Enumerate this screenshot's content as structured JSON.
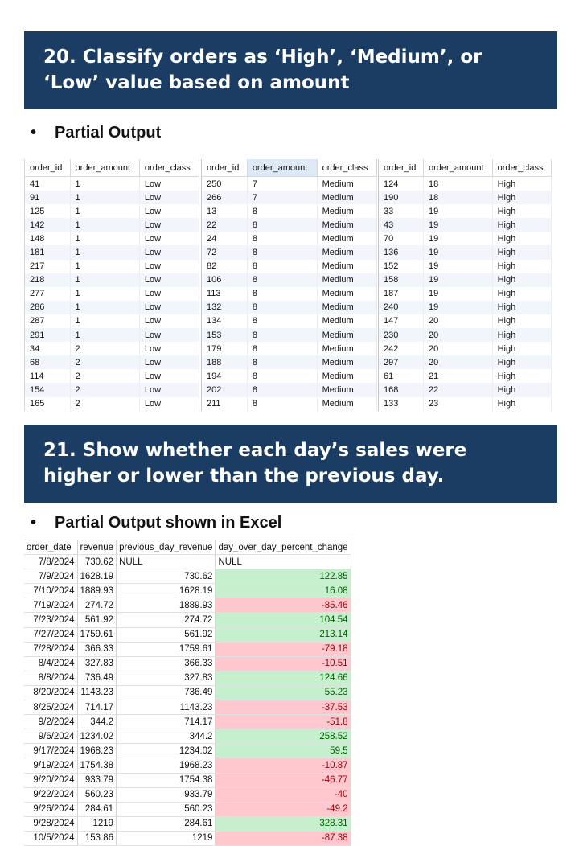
{
  "section1": {
    "title_lines": [
      "20. Classify orders as ‘High’, ‘Medium’, or",
      "‘Low’ value based on amount"
    ],
    "bullet": "•",
    "subtitle": "Partial Output",
    "grids": [
      {
        "columns": [
          "order_id",
          "order_amount",
          "order_class"
        ],
        "selected_column": -1,
        "rows": [
          [
            "41",
            "1",
            "Low"
          ],
          [
            "91",
            "1",
            "Low"
          ],
          [
            "125",
            "1",
            "Low"
          ],
          [
            "142",
            "1",
            "Low"
          ],
          [
            "148",
            "1",
            "Low"
          ],
          [
            "181",
            "1",
            "Low"
          ],
          [
            "217",
            "1",
            "Low"
          ],
          [
            "218",
            "1",
            "Low"
          ],
          [
            "277",
            "1",
            "Low"
          ],
          [
            "286",
            "1",
            "Low"
          ],
          [
            "287",
            "1",
            "Low"
          ],
          [
            "291",
            "1",
            "Low"
          ],
          [
            "34",
            "2",
            "Low"
          ],
          [
            "68",
            "2",
            "Low"
          ],
          [
            "114",
            "2",
            "Low"
          ],
          [
            "154",
            "2",
            "Low"
          ],
          [
            "165",
            "2",
            "Low"
          ]
        ]
      },
      {
        "columns": [
          "order_id",
          "order_amount",
          "order_class"
        ],
        "selected_column": 1,
        "rows": [
          [
            "250",
            "7",
            "Medium"
          ],
          [
            "266",
            "7",
            "Medium"
          ],
          [
            "13",
            "8",
            "Medium"
          ],
          [
            "22",
            "8",
            "Medium"
          ],
          [
            "24",
            "8",
            "Medium"
          ],
          [
            "72",
            "8",
            "Medium"
          ],
          [
            "82",
            "8",
            "Medium"
          ],
          [
            "106",
            "8",
            "Medium"
          ],
          [
            "113",
            "8",
            "Medium"
          ],
          [
            "132",
            "8",
            "Medium"
          ],
          [
            "134",
            "8",
            "Medium"
          ],
          [
            "153",
            "8",
            "Medium"
          ],
          [
            "179",
            "8",
            "Medium"
          ],
          [
            "188",
            "8",
            "Medium"
          ],
          [
            "194",
            "8",
            "Medium"
          ],
          [
            "202",
            "8",
            "Medium"
          ],
          [
            "211",
            "8",
            "Medium"
          ]
        ]
      },
      {
        "columns": [
          "order_id",
          "order_amount",
          "order_class"
        ],
        "selected_column": -1,
        "rows": [
          [
            "124",
            "18",
            "High"
          ],
          [
            "190",
            "18",
            "High"
          ],
          [
            "33",
            "19",
            "High"
          ],
          [
            "43",
            "19",
            "High"
          ],
          [
            "70",
            "19",
            "High"
          ],
          [
            "136",
            "19",
            "High"
          ],
          [
            "152",
            "19",
            "High"
          ],
          [
            "158",
            "19",
            "High"
          ],
          [
            "187",
            "19",
            "High"
          ],
          [
            "240",
            "19",
            "High"
          ],
          [
            "147",
            "20",
            "High"
          ],
          [
            "230",
            "20",
            "High"
          ],
          [
            "242",
            "20",
            "High"
          ],
          [
            "297",
            "20",
            "High"
          ],
          [
            "61",
            "21",
            "High"
          ],
          [
            "168",
            "22",
            "High"
          ],
          [
            "133",
            "23",
            "High"
          ]
        ]
      }
    ]
  },
  "section2": {
    "title_lines": [
      "21. Show whether each day’s sales were",
      "higher or lower than the previous day."
    ],
    "bullet": "•",
    "subtitle": "Partial Output shown in Excel",
    "excel": {
      "columns": [
        "order_date",
        "revenue",
        "previous_day_revenue",
        "day_over_day_percent_change"
      ],
      "rows": [
        [
          "7/8/2024",
          "730.62",
          "NULL",
          "NULL"
        ],
        [
          "7/9/2024",
          "1628.19",
          "730.62",
          "122.85"
        ],
        [
          "7/10/2024",
          "1889.93",
          "1628.19",
          "16.08"
        ],
        [
          "7/19/2024",
          "274.72",
          "1889.93",
          "-85.46"
        ],
        [
          "7/23/2024",
          "561.92",
          "274.72",
          "104.54"
        ],
        [
          "7/27/2024",
          "1759.61",
          "561.92",
          "213.14"
        ],
        [
          "7/28/2024",
          "366.33",
          "1759.61",
          "-79.18"
        ],
        [
          "8/4/2024",
          "327.83",
          "366.33",
          "-10.51"
        ],
        [
          "8/8/2024",
          "736.49",
          "327.83",
          "124.66"
        ],
        [
          "8/20/2024",
          "1143.23",
          "736.49",
          "55.23"
        ],
        [
          "8/25/2024",
          "714.17",
          "1143.23",
          "-37.53"
        ],
        [
          "9/2/2024",
          "344.2",
          "714.17",
          "-51.8"
        ],
        [
          "9/6/2024",
          "1234.02",
          "344.2",
          "258.52"
        ],
        [
          "9/17/2024",
          "1968.23",
          "1234.02",
          "59.5"
        ],
        [
          "9/19/2024",
          "1754.38",
          "1968.23",
          "-10.87"
        ],
        [
          "9/20/2024",
          "933.79",
          "1754.38",
          "-46.77"
        ],
        [
          "9/22/2024",
          "560.23",
          "933.79",
          "-40"
        ],
        [
          "9/26/2024",
          "284.61",
          "560.23",
          "-49.2"
        ],
        [
          "9/28/2024",
          "1219",
          "284.61",
          "328.31"
        ],
        [
          "10/5/2024",
          "153.86",
          "1219",
          "-87.38"
        ]
      ],
      "colors": {
        "positive_fill": "#c6efce",
        "positive_text": "#006100",
        "negative_fill": "#ffc7ce",
        "negative_text": "#9c0006"
      }
    }
  },
  "colors": {
    "banner": "#1b3c63",
    "banner_text": "#ffffff"
  }
}
